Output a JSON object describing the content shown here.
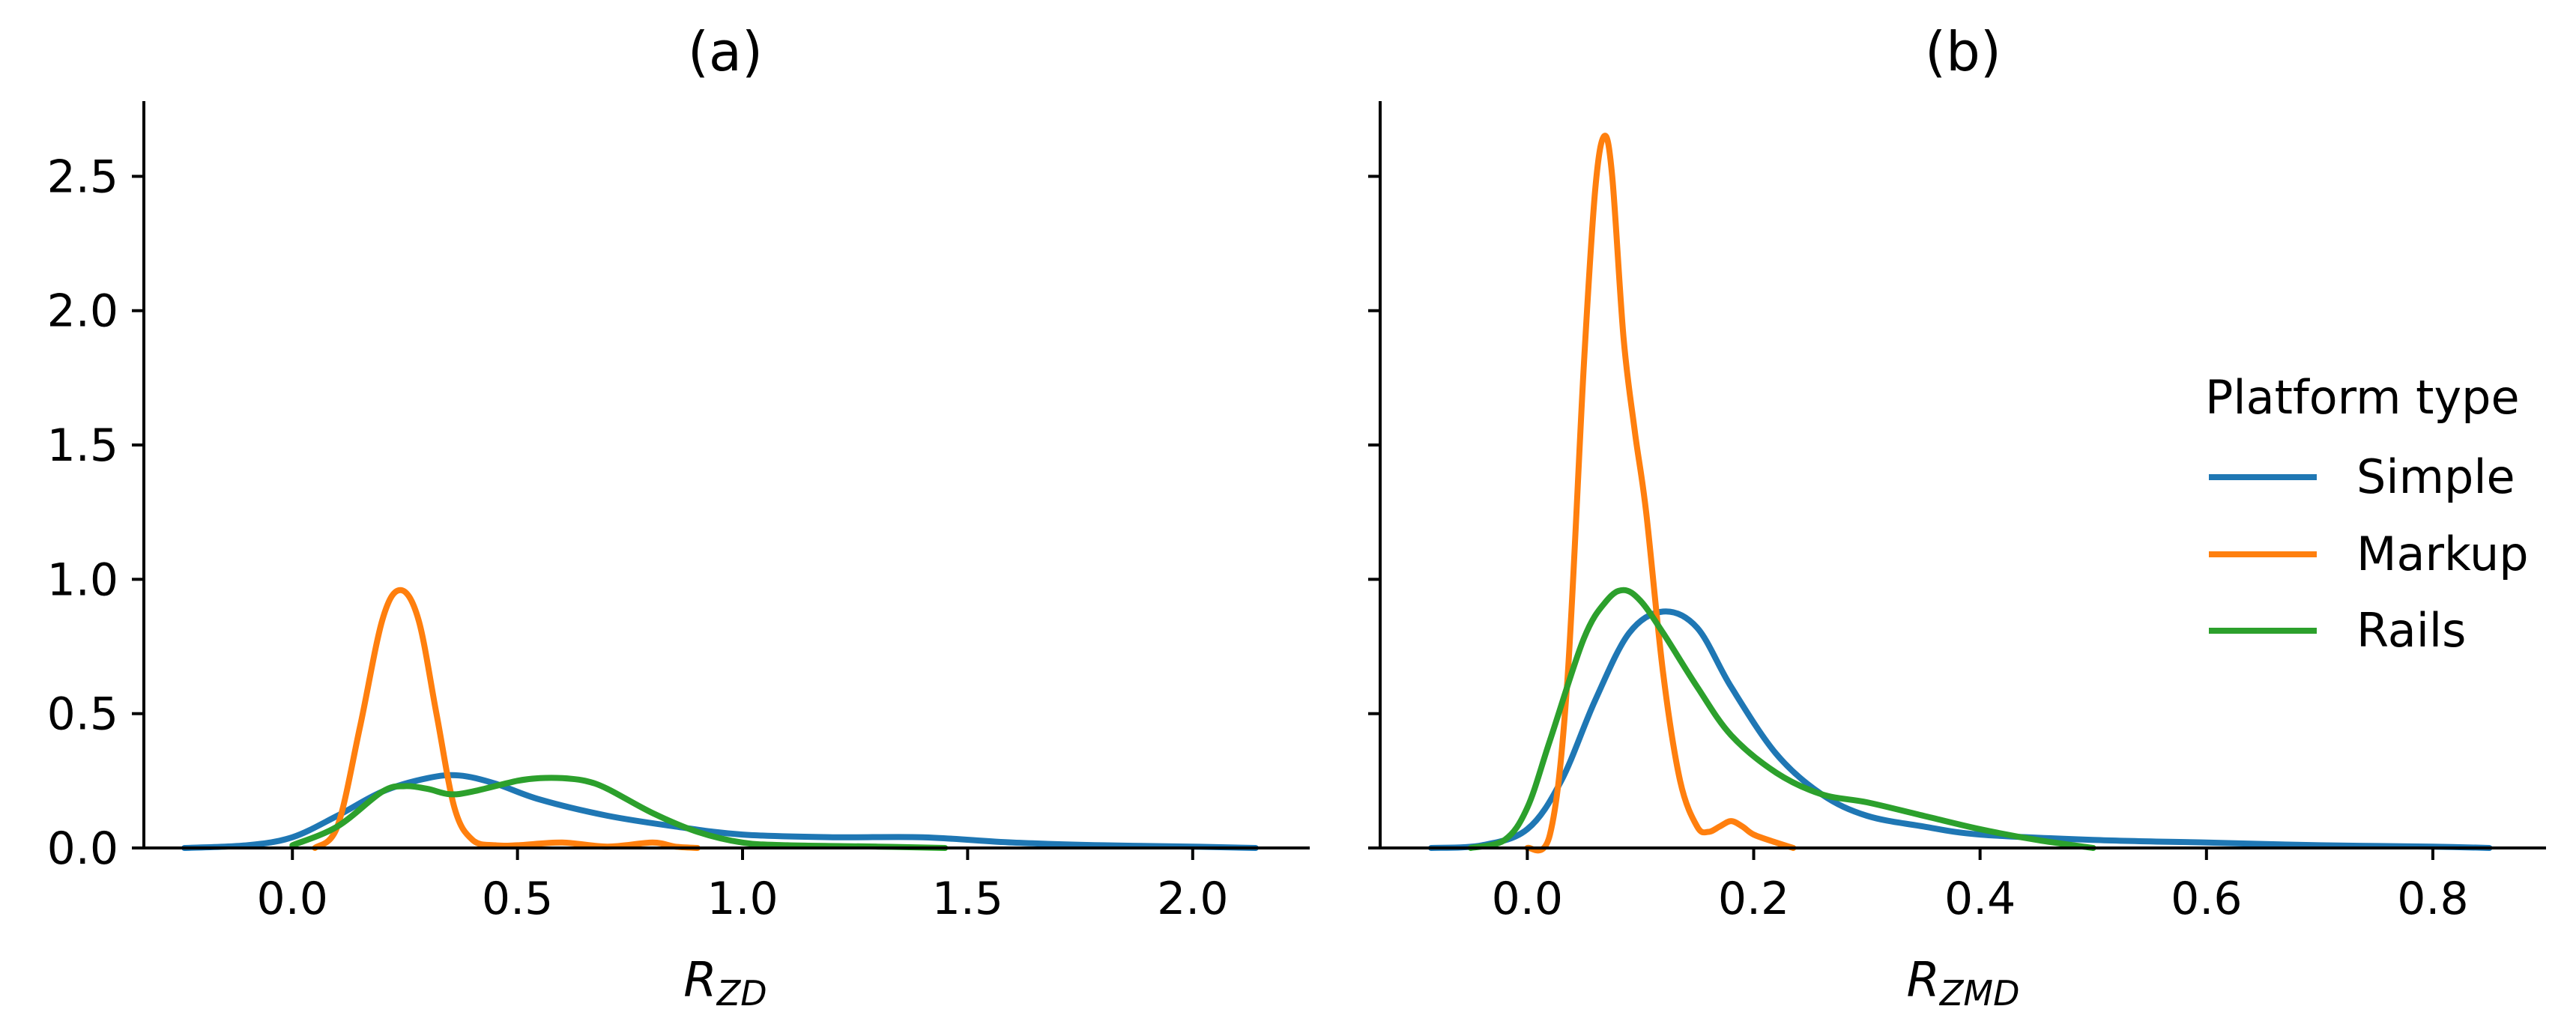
{
  "colors": {
    "Simple": "#1f77b4",
    "Markup": "#ff7f0e",
    "Rails": "#2ca02c"
  },
  "legend": {
    "title": "Platform type",
    "placement": "center-right",
    "entries": [
      "Simple",
      "Markup",
      "Rails"
    ]
  },
  "chart_data": [
    {
      "type": "line",
      "title": "(a)",
      "xlabel": {
        "main": "R",
        "sub": "ZD"
      },
      "ylabel": "",
      "xlim": [
        -0.33,
        2.26
      ],
      "ylim": [
        0,
        2.78
      ],
      "xticks": [
        "0.0",
        "0.5",
        "1.0",
        "1.5",
        "2.0"
      ],
      "xtick_values": [
        0.0,
        0.5,
        1.0,
        1.5,
        2.0
      ],
      "yticks": [
        "0.0",
        "0.5",
        "1.0",
        "1.5",
        "2.0",
        "2.5"
      ],
      "ytick_values": [
        0.0,
        0.5,
        1.0,
        1.5,
        2.0,
        2.5
      ],
      "grid": false,
      "series": [
        {
          "name": "Simple",
          "x": [
            -0.24,
            -0.1,
            0.0,
            0.1,
            0.2,
            0.3,
            0.37,
            0.45,
            0.55,
            0.7,
            0.85,
            1.0,
            1.2,
            1.4,
            1.6,
            1.8,
            2.0,
            2.14
          ],
          "y": [
            0.0,
            0.01,
            0.04,
            0.12,
            0.21,
            0.26,
            0.27,
            0.24,
            0.18,
            0.12,
            0.08,
            0.05,
            0.04,
            0.04,
            0.02,
            0.01,
            0.005,
            0.0
          ]
        },
        {
          "name": "Markup",
          "x": [
            0.05,
            0.1,
            0.15,
            0.2,
            0.24,
            0.28,
            0.32,
            0.36,
            0.4,
            0.45,
            0.5,
            0.6,
            0.7,
            0.8,
            0.85,
            0.9
          ],
          "y": [
            0.0,
            0.08,
            0.45,
            0.85,
            0.96,
            0.85,
            0.5,
            0.15,
            0.03,
            0.01,
            0.01,
            0.02,
            0.005,
            0.02,
            0.005,
            0.0
          ]
        },
        {
          "name": "Rails",
          "x": [
            0.0,
            0.1,
            0.2,
            0.25,
            0.3,
            0.35,
            0.4,
            0.5,
            0.55,
            0.6,
            0.65,
            0.7,
            0.8,
            0.9,
            1.0,
            1.1,
            1.3,
            1.45
          ],
          "y": [
            0.01,
            0.08,
            0.21,
            0.23,
            0.22,
            0.2,
            0.21,
            0.25,
            0.26,
            0.26,
            0.25,
            0.22,
            0.13,
            0.06,
            0.02,
            0.01,
            0.005,
            0.0
          ]
        }
      ]
    },
    {
      "type": "line",
      "title": "(b)",
      "xlabel": {
        "main": "R",
        "sub": "ZMD"
      },
      "ylabel": "",
      "xlim": [
        -0.13,
        0.9
      ],
      "ylim": [
        0,
        2.78
      ],
      "xticks": [
        "0.0",
        "0.2",
        "0.4",
        "0.6",
        "0.8"
      ],
      "xtick_values": [
        0.0,
        0.2,
        0.4,
        0.6,
        0.8
      ],
      "yticks": [
        "0.0",
        "0.5",
        "1.0",
        "1.5",
        "2.0",
        "2.5"
      ],
      "ytick_values": [
        0.0,
        0.5,
        1.0,
        1.5,
        2.0,
        2.5
      ],
      "grid": false,
      "series": [
        {
          "name": "Simple",
          "x": [
            -0.085,
            -0.04,
            0.0,
            0.03,
            0.06,
            0.09,
            0.12,
            0.15,
            0.18,
            0.22,
            0.26,
            0.3,
            0.35,
            0.4,
            0.5,
            0.6,
            0.7,
            0.8,
            0.85
          ],
          "y": [
            0.0,
            0.01,
            0.07,
            0.25,
            0.55,
            0.8,
            0.88,
            0.82,
            0.6,
            0.35,
            0.2,
            0.12,
            0.08,
            0.05,
            0.03,
            0.02,
            0.01,
            0.005,
            0.0
          ]
        },
        {
          "name": "Markup",
          "x": [
            0.0,
            0.02,
            0.035,
            0.05,
            0.06,
            0.068,
            0.075,
            0.085,
            0.095,
            0.105,
            0.12,
            0.135,
            0.15,
            0.16,
            0.17,
            0.18,
            0.19,
            0.2,
            0.22,
            0.235
          ],
          "y": [
            0.0,
            0.05,
            0.6,
            1.8,
            2.45,
            2.65,
            2.5,
            1.9,
            1.55,
            1.25,
            0.65,
            0.25,
            0.08,
            0.06,
            0.08,
            0.1,
            0.08,
            0.05,
            0.02,
            0.0
          ]
        },
        {
          "name": "Rails",
          "x": [
            -0.05,
            -0.02,
            0.0,
            0.02,
            0.05,
            0.07,
            0.085,
            0.1,
            0.12,
            0.15,
            0.18,
            0.22,
            0.26,
            0.3,
            0.35,
            0.4,
            0.45,
            0.5
          ],
          "y": [
            0.0,
            0.03,
            0.15,
            0.4,
            0.78,
            0.92,
            0.96,
            0.92,
            0.8,
            0.6,
            0.42,
            0.28,
            0.2,
            0.17,
            0.12,
            0.07,
            0.03,
            0.0
          ]
        }
      ]
    }
  ]
}
